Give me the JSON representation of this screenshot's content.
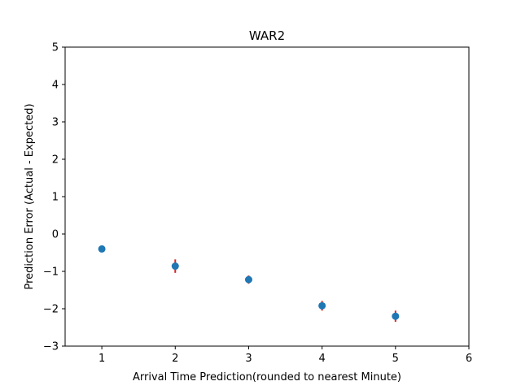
{
  "chart_data": {
    "type": "scatter",
    "title": "WAR2",
    "xlabel": "Arrival Time Prediction(rounded to nearest Minute)",
    "ylabel": "Prediction Error (Actual - Expected)",
    "xlim": [
      0.5,
      6
    ],
    "ylim": [
      -3,
      5
    ],
    "xticks": [
      "1",
      "2",
      "3",
      "4",
      "5",
      "6"
    ],
    "yticks": [
      "−3",
      "−2",
      "−1",
      "0",
      "1",
      "2",
      "3",
      "4",
      "5"
    ],
    "grid": false,
    "points": [
      {
        "x": 1,
        "y": -0.4,
        "err": 0.08
      },
      {
        "x": 2,
        "y": -0.86,
        "err": 0.18
      },
      {
        "x": 3,
        "y": -1.22,
        "err": 0.11
      },
      {
        "x": 4,
        "y": -1.92,
        "err": 0.13
      },
      {
        "x": 5,
        "y": -2.2,
        "err": 0.15
      }
    ],
    "marker_color": "#1f77b4",
    "errorbar_color": "#d62728"
  }
}
